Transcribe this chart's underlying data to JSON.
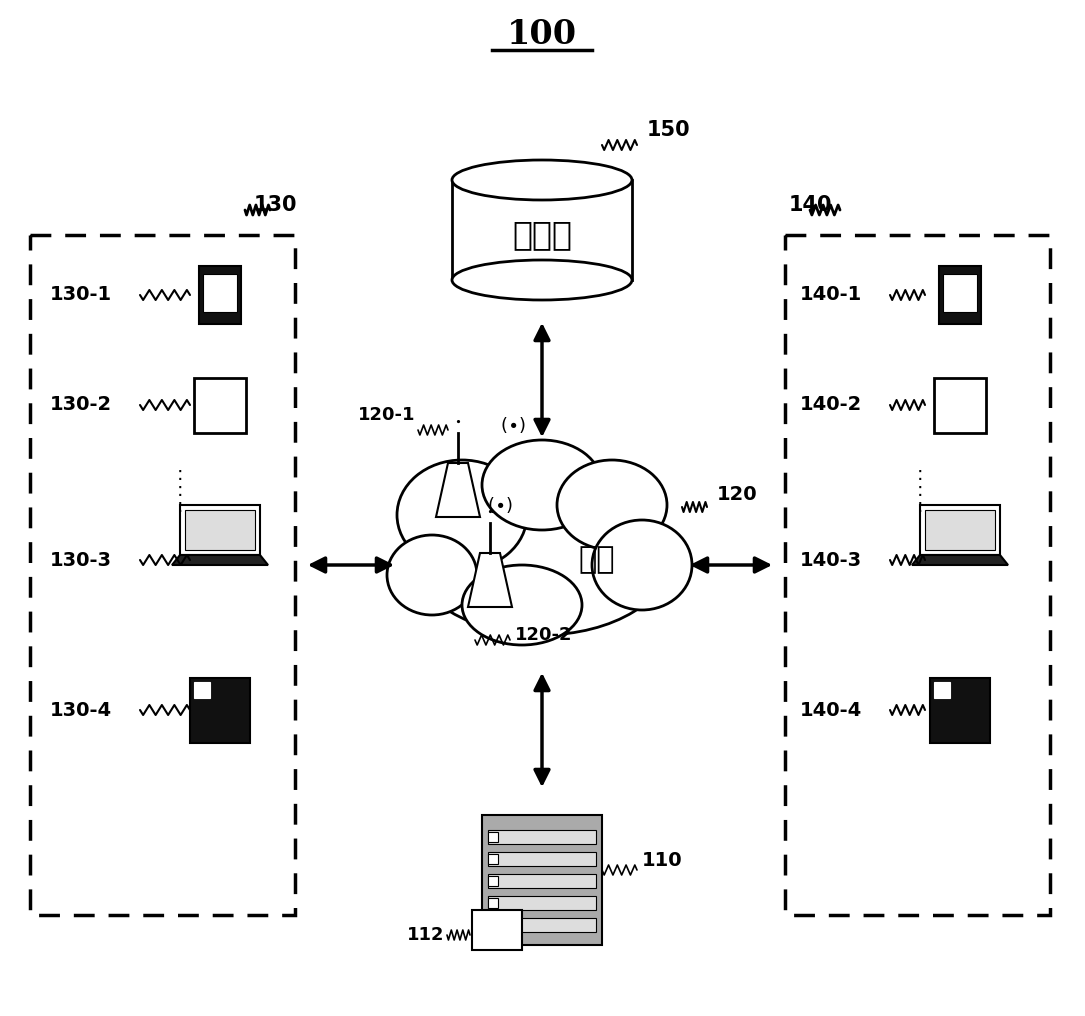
{
  "title": "100",
  "bg_color": "#ffffff",
  "label_130": "130",
  "label_140": "140",
  "label_150": "150",
  "label_110": "110",
  "label_112": "112",
  "label_120": "120",
  "label_1201": "120-1",
  "label_1202": "120-2",
  "label_db": "数据库",
  "label_net": "网络",
  "devices_left": [
    "130-1",
    "130-2",
    "130-3",
    "130-4"
  ],
  "devices_right": [
    "140-1",
    "140-2",
    "140-3",
    "140-4"
  ],
  "text_color": "#000000",
  "box_color": "#000000",
  "dashed_color": "#000000"
}
